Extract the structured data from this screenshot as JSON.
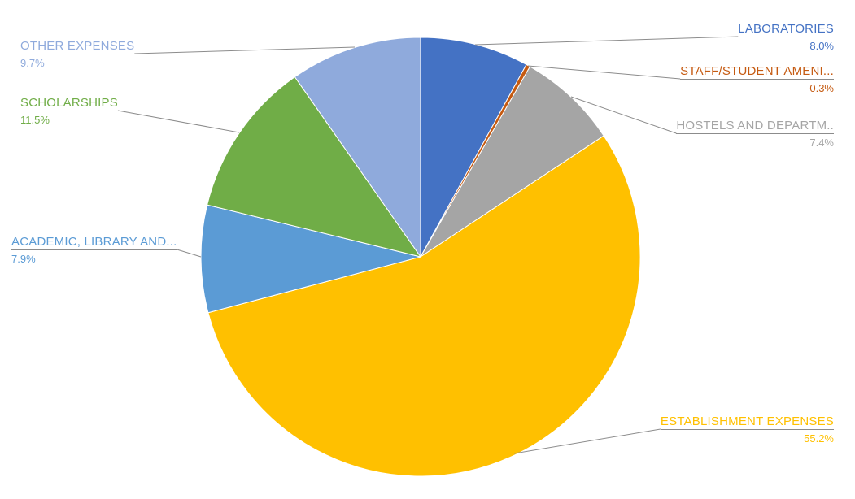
{
  "chart_data": {
    "type": "pie",
    "title": "",
    "legend_position": "none",
    "start_angle_deg": 0,
    "direction": "clockwise",
    "background": "#FFFFFF",
    "leader_line_color": "#8C8C8C",
    "categories": [
      "LABORATORIES",
      "STAFF/STUDENT AMENI...",
      "HOSTELS AND DEPARTM..",
      "ESTABLISHMENT EXPENSES",
      "ACADEMIC, LIBRARY AND...",
      "SCHOLARSHIPS",
      "OTHER EXPENSES"
    ],
    "values": [
      8.0,
      0.3,
      7.4,
      55.2,
      7.9,
      11.5,
      9.7
    ],
    "slices": [
      {
        "label": "LABORATORIES",
        "pct": 8.0,
        "pct_text": "8.0%",
        "color": "#4472C4"
      },
      {
        "label": "STAFF/STUDENT AMENI...",
        "pct": 0.3,
        "pct_text": "0.3%",
        "color": "#C55A11"
      },
      {
        "label": "HOSTELS AND DEPARTM..",
        "pct": 7.4,
        "pct_text": "7.4%",
        "color": "#A5A5A5"
      },
      {
        "label": "ESTABLISHMENT EXPENSES",
        "pct": 55.2,
        "pct_text": "55.2%",
        "color": "#FFC000"
      },
      {
        "label": "ACADEMIC, LIBRARY AND...",
        "pct": 7.9,
        "pct_text": "7.9%",
        "color": "#5B9BD5"
      },
      {
        "label": "SCHOLARSHIPS",
        "pct": 11.5,
        "pct_text": "11.5%",
        "color": "#70AD47"
      },
      {
        "label": "OTHER EXPENSES",
        "pct": 9.7,
        "pct_text": "9.7%",
        "color": "#8FAADC"
      }
    ]
  }
}
